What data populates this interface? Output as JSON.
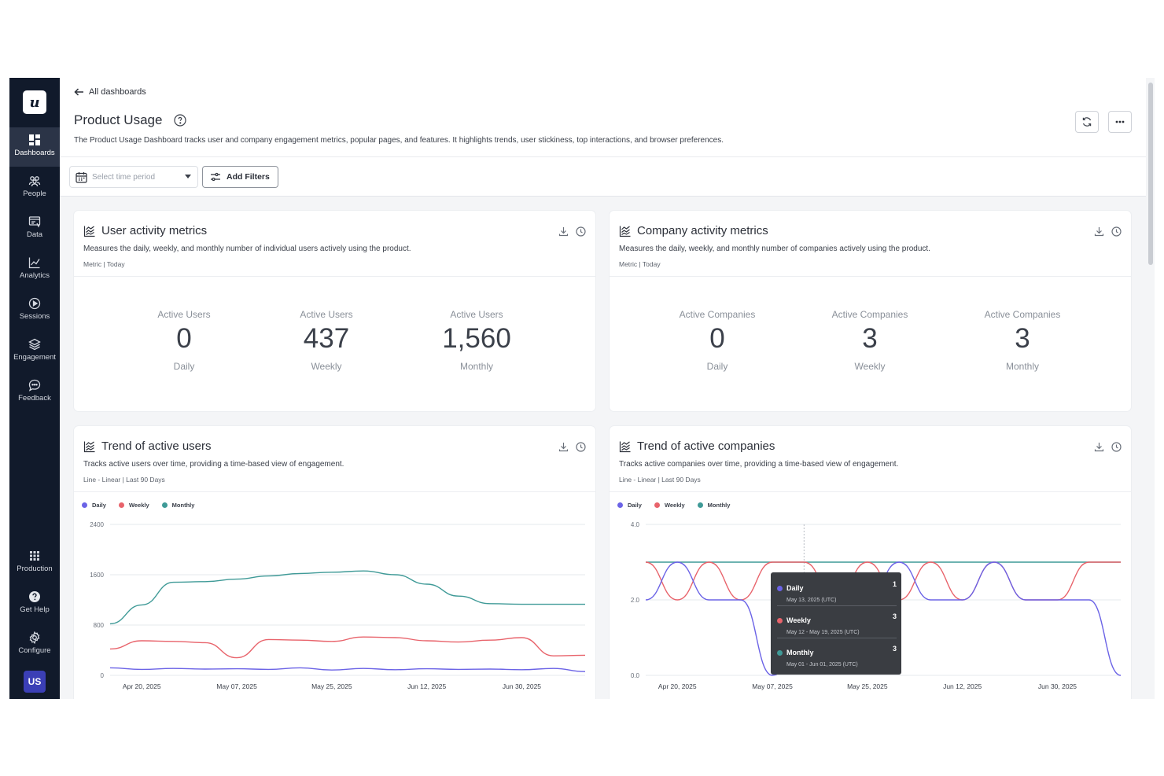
{
  "sidebar": {
    "logo": "u",
    "items": [
      {
        "label": "Dashboards",
        "icon": "dashboard-icon"
      },
      {
        "label": "People",
        "icon": "people-icon"
      },
      {
        "label": "Data",
        "icon": "data-icon"
      },
      {
        "label": "Analytics",
        "icon": "analytics-icon"
      },
      {
        "label": "Sessions",
        "icon": "sessions-icon"
      },
      {
        "label": "Engagement",
        "icon": "engagement-icon"
      },
      {
        "label": "Feedback",
        "icon": "feedback-icon"
      }
    ],
    "bottom_items": [
      {
        "label": "Production",
        "icon": "grid-icon"
      },
      {
        "label": "Get Help",
        "icon": "help-icon"
      },
      {
        "label": "Configure",
        "icon": "gear-icon"
      }
    ],
    "avatar": "US"
  },
  "header": {
    "back_label": "All dashboards",
    "title": "Product Usage",
    "description": "The Product Usage Dashboard tracks user and company engagement metrics, popular pages, and features. It highlights trends, user stickiness, top interactions, and browser preferences.",
    "time_placeholder": "Select time period",
    "filters_label": "Add Filters"
  },
  "cards": {
    "user_metrics": {
      "title": "User activity metrics",
      "description": "Measures the daily, weekly, and monthly number of individual users actively using the product.",
      "meta": "Metric | Today",
      "metrics": [
        {
          "label": "Active Users",
          "value": "0",
          "period": "Daily"
        },
        {
          "label": "Active Users",
          "value": "437",
          "period": "Weekly"
        },
        {
          "label": "Active Users",
          "value": "1,560",
          "period": "Monthly"
        }
      ]
    },
    "company_metrics": {
      "title": "Company activity metrics",
      "description": "Measures the daily, weekly, and monthly number of companies actively using the product.",
      "meta": "Metric | Today",
      "metrics": [
        {
          "label": "Active Companies",
          "value": "0",
          "period": "Daily"
        },
        {
          "label": "Active Companies",
          "value": "3",
          "period": "Weekly"
        },
        {
          "label": "Active Companies",
          "value": "3",
          "period": "Monthly"
        }
      ]
    },
    "user_trend": {
      "title": "Trend of active users",
      "description": "Tracks active users over time, providing a time-based view of engagement.",
      "meta": "Line - Linear | Last 90 Days"
    },
    "company_trend": {
      "title": "Trend of active companies",
      "description": "Tracks active companies over time, providing a time-based view of engagement.",
      "meta": "Line - Linear | Last 90 Days",
      "tooltip": [
        {
          "name": "Daily",
          "value": "1",
          "date": "May 13, 2025 (UTC)"
        },
        {
          "name": "Weekly",
          "value": "3",
          "date": "May 12 - May 19, 2025 (UTC)"
        },
        {
          "name": "Monthly",
          "value": "3",
          "date": "May 01 - Jun 01, 2025 (UTC)"
        }
      ]
    }
  },
  "colors": {
    "daily": "#6b63e6",
    "weekly": "#e8636b",
    "monthly": "#3f9a97",
    "sidebar": "#111a2b"
  },
  "chart_data": [
    {
      "type": "line",
      "x": [
        "Apr 15, 2025",
        "Apr 20, 2025",
        "Apr 25, 2025",
        "May 01, 2025",
        "May 07, 2025",
        "May 13, 2025",
        "May 19, 2025",
        "May 25, 2025",
        "Jun 01, 2025",
        "Jun 06, 2025",
        "Jun 12, 2025",
        "Jun 18, 2025",
        "Jun 24, 2025",
        "Jun 30, 2025",
        "Jul 07, 2025",
        "Jul 14, 2025"
      ],
      "x_tick_labels": [
        "Apr 20, 2025",
        "May 07, 2025",
        "May 25, 2025",
        "Jun 12, 2025",
        "Jun 30, 2025"
      ],
      "y_tick_labels": [
        "2400",
        "1600",
        "800",
        "0"
      ],
      "ylim": [
        0,
        2400
      ],
      "grid": true,
      "legend": "top-left",
      "series": [
        {
          "name": "Daily",
          "values": [
            120,
            95,
            110,
            100,
            105,
            95,
            120,
            85,
            110,
            90,
            105,
            95,
            100,
            90,
            110,
            60
          ]
        },
        {
          "name": "Weekly",
          "values": [
            420,
            550,
            540,
            520,
            280,
            570,
            560,
            540,
            610,
            600,
            550,
            530,
            560,
            600,
            310,
            320
          ]
        },
        {
          "name": "Monthly",
          "values": [
            820,
            1120,
            1480,
            1490,
            1530,
            1580,
            1620,
            1640,
            1660,
            1600,
            1450,
            1260,
            1140,
            1130,
            1130,
            1130
          ]
        }
      ]
    },
    {
      "type": "line",
      "x": [
        "Apr 15, 2025",
        "Apr 20, 2025",
        "Apr 25, 2025",
        "May 01, 2025",
        "May 07, 2025",
        "May 13, 2025",
        "May 19, 2025",
        "May 25, 2025",
        "Jun 01, 2025",
        "Jun 06, 2025",
        "Jun 12, 2025",
        "Jun 18, 2025",
        "Jun 24, 2025",
        "Jun 30, 2025",
        "Jul 07, 2025",
        "Jul 14, 2025"
      ],
      "x_tick_labels": [
        "Apr 20, 2025",
        "May 07, 2025",
        "May 25, 2025",
        "Jun 12, 2025",
        "Jun 30, 2025"
      ],
      "y_tick_labels": [
        "4.0",
        "2.0",
        "0.0"
      ],
      "ylim": [
        0,
        4
      ],
      "grid": true,
      "legend": "top-left",
      "series": [
        {
          "name": "Daily",
          "values": [
            2,
            3,
            2,
            2,
            0,
            1,
            2,
            2,
            3,
            2,
            2,
            3,
            2,
            2,
            2,
            0
          ]
        },
        {
          "name": "Weekly",
          "values": [
            3,
            2,
            3,
            2,
            3,
            3,
            2,
            3,
            2,
            3,
            2,
            3,
            2,
            2,
            3,
            3
          ]
        },
        {
          "name": "Monthly",
          "values": [
            3,
            3,
            3,
            3,
            3,
            3,
            3,
            3,
            3,
            3,
            3,
            3,
            3,
            3,
            3,
            3
          ]
        }
      ]
    }
  ]
}
